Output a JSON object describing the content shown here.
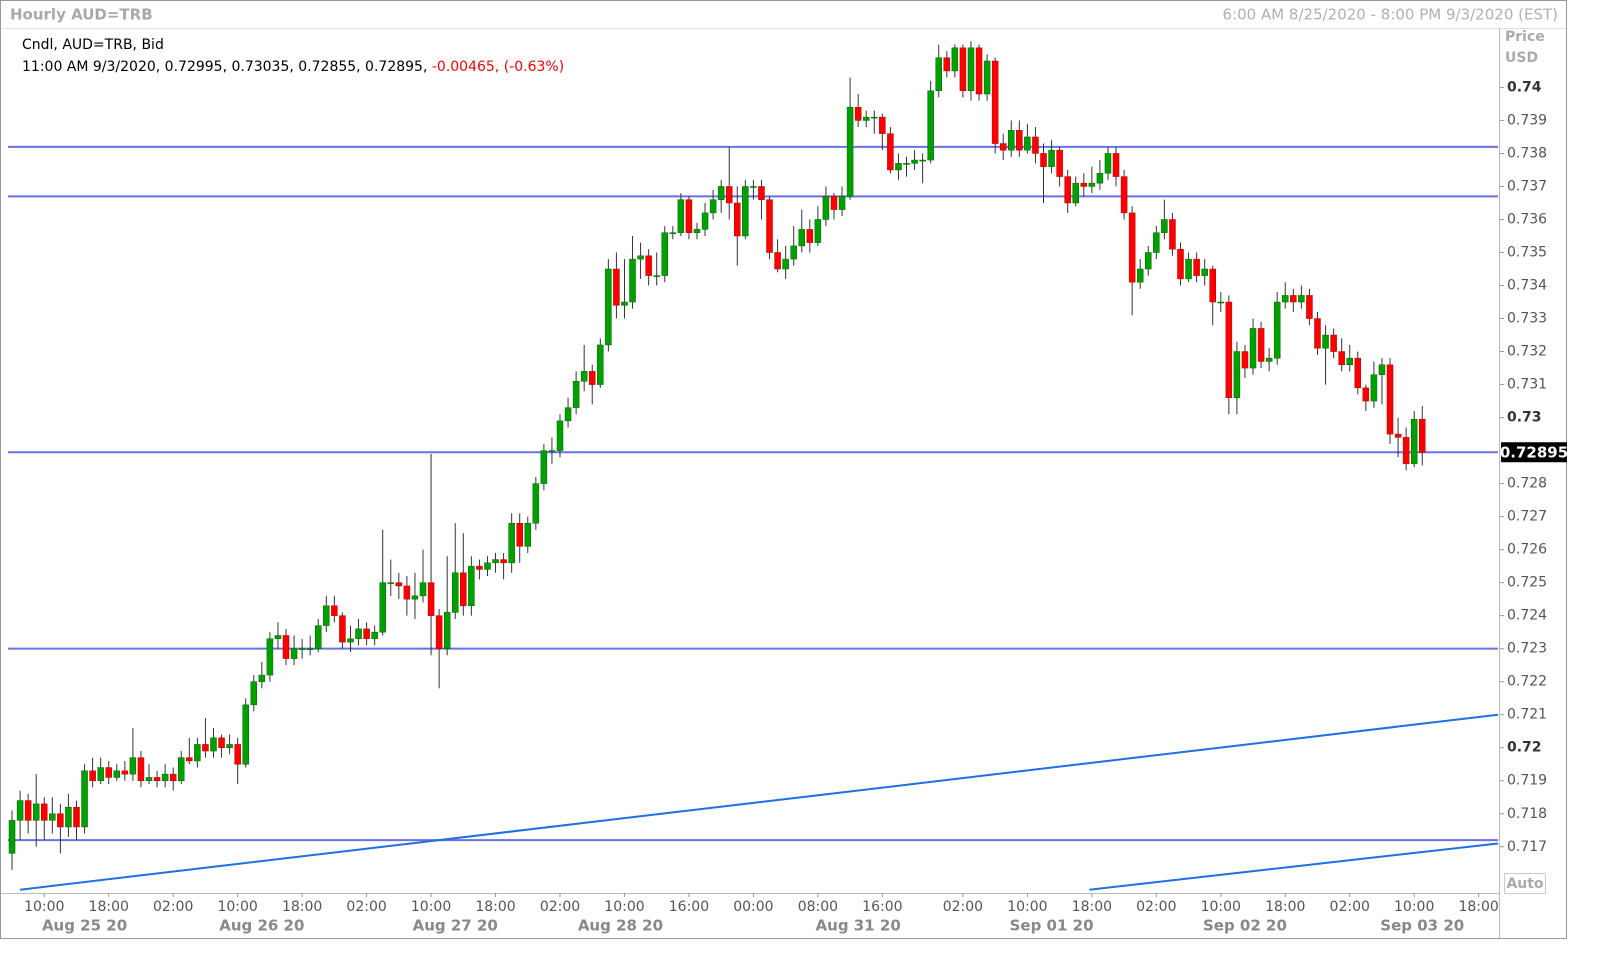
{
  "header": {
    "title": "Hourly AUD=TRB",
    "range": "6:00 AM 8/25/2020 - 8:00 PM 9/3/2020 (EST)"
  },
  "chart_data": {
    "type": "candlestick",
    "info_title": "Cndl, AUD=TRB, Bid",
    "info_values": "11:00 AM 9/3/2020, 0.72995, 0.73035, 0.72855, 0.72895,",
    "info_change": "-0.00465, (-0.63%)",
    "axis_label": "Price",
    "axis_unit": "USD",
    "auto_button": "Auto",
    "up_color": "#00a000",
    "down_color": "#ff0000",
    "open": [
      0.7168,
      0.7178,
      0.7184,
      0.7178,
      0.7183,
      0.7178,
      0.718,
      0.7176,
      0.7182,
      0.7176,
      0.7193,
      0.719,
      0.7194,
      0.7191,
      0.7193,
      0.7192,
      0.7197,
      0.719,
      0.7191,
      0.719,
      0.7192,
      0.719,
      0.7197,
      0.7196,
      0.7201,
      0.7199,
      0.7203,
      0.72,
      0.7201,
      0.7195,
      0.7213,
      0.722,
      0.7222,
      0.7233,
      0.7234,
      0.7227,
      0.723,
      0.723,
      0.723,
      0.7237,
      0.7243,
      0.724,
      0.7232,
      0.7233,
      0.7236,
      0.7233,
      0.7235,
      0.725,
      0.725,
      0.7249,
      0.7245,
      0.7246,
      0.725,
      0.724,
      0.723,
      0.7241,
      0.7253,
      0.7243,
      0.7255,
      0.7254,
      0.7256,
      0.7257,
      0.7256,
      0.7268,
      0.7261,
      0.7268,
      0.728,
      0.729,
      0.729,
      0.7299,
      0.7303,
      0.7311,
      0.7314,
      0.731,
      0.7322,
      0.7345,
      0.7334,
      0.7335,
      0.7348,
      0.7349,
      0.7343,
      0.7343,
      0.7356,
      0.7356,
      0.7366,
      0.7356,
      0.7357,
      0.7362,
      0.7366,
      0.737,
      0.7365,
      0.7355,
      0.737,
      0.737,
      0.7366,
      0.735,
      0.7345,
      0.7348,
      0.7352,
      0.7357,
      0.7353,
      0.736,
      0.7367,
      0.7363,
      0.7367,
      0.7394,
      0.739,
      0.7391,
      0.7391,
      0.7386,
      0.7375,
      0.7377,
      0.7377,
      0.7378,
      0.7378,
      0.7399,
      0.7409,
      0.7405,
      0.7412,
      0.7399,
      0.7412,
      0.7398,
      0.7408,
      0.7383,
      0.7381,
      0.7387,
      0.7381,
      0.7385,
      0.738,
      0.7376,
      0.7381,
      0.7373,
      0.7365,
      0.7371,
      0.737,
      0.7371,
      0.7374,
      0.738,
      0.7373,
      0.7362,
      0.7341,
      0.7345,
      0.735,
      0.7356,
      0.736,
      0.7351,
      0.7342,
      0.7348,
      0.7343,
      0.7345,
      0.7335,
      0.7335,
      0.7306,
      0.732,
      0.7315,
      0.7327,
      0.7317,
      0.7318,
      0.7335,
      0.7337,
      0.7335,
      0.7337,
      0.733,
      0.7321,
      0.7325,
      0.732,
      0.7316,
      0.7318,
      0.7309,
      0.7305,
      0.7313,
      0.7316,
      0.7295,
      0.7294,
      0.7286,
      0.72995
    ],
    "high": [
      0.7181,
      0.7187,
      0.7186,
      0.7192,
      0.7185,
      0.7185,
      0.7183,
      0.7186,
      0.7184,
      0.7195,
      0.7197,
      0.7197,
      0.7196,
      0.7195,
      0.7196,
      0.7206,
      0.7199,
      0.7195,
      0.7193,
      0.7195,
      0.7194,
      0.7199,
      0.7203,
      0.7203,
      0.7209,
      0.7206,
      0.7204,
      0.7204,
      0.7203,
      0.7215,
      0.7222,
      0.7226,
      0.7235,
      0.7238,
      0.7236,
      0.7234,
      0.7233,
      0.7234,
      0.7239,
      0.7246,
      0.7246,
      0.7241,
      0.7237,
      0.7239,
      0.7238,
      0.7237,
      0.7266,
      0.7257,
      0.7253,
      0.7252,
      0.7253,
      0.726,
      0.7289,
      0.7242,
      0.7258,
      0.7268,
      0.7265,
      0.7258,
      0.7257,
      0.7258,
      0.7259,
      0.7259,
      0.7271,
      0.7271,
      0.727,
      0.7282,
      0.7292,
      0.7294,
      0.7301,
      0.7306,
      0.7314,
      0.7322,
      0.7316,
      0.7324,
      0.7348,
      0.735,
      0.7348,
      0.7355,
      0.7353,
      0.7351,
      0.735,
      0.7358,
      0.7358,
      0.7368,
      0.7367,
      0.7359,
      0.7365,
      0.7369,
      0.7372,
      0.7382,
      0.737,
      0.7372,
      0.7372,
      0.7372,
      0.7367,
      0.7354,
      0.7352,
      0.7358,
      0.7363,
      0.736,
      0.7364,
      0.737,
      0.7368,
      0.737,
      0.7403,
      0.7398,
      0.7393,
      0.7393,
      0.7392,
      0.7388,
      0.738,
      0.7379,
      0.7381,
      0.738,
      0.7402,
      0.7413,
      0.7411,
      0.7413,
      0.7413,
      0.7414,
      0.7413,
      0.741,
      0.7409,
      0.7386,
      0.739,
      0.739,
      0.7389,
      0.7388,
      0.7383,
      0.7384,
      0.7382,
      0.7375,
      0.7373,
      0.7374,
      0.7376,
      0.7378,
      0.7382,
      0.7382,
      0.7375,
      0.7364,
      0.7348,
      0.7352,
      0.7358,
      0.7366,
      0.7362,
      0.7353,
      0.735,
      0.735,
      0.7348,
      0.7346,
      0.7338,
      0.7337,
      0.7323,
      0.7322,
      0.733,
      0.7329,
      0.7321,
      0.7338,
      0.7341,
      0.7339,
      0.734,
      0.7339,
      0.7332,
      0.7328,
      0.7327,
      0.7324,
      0.7322,
      0.732,
      0.731,
      0.7317,
      0.7318,
      0.7318,
      0.73,
      0.7297,
      0.7302,
      0.73035
    ],
    "low": [
      0.7163,
      0.7172,
      0.7174,
      0.717,
      0.7172,
      0.7174,
      0.7168,
      0.7173,
      0.7172,
      0.7174,
      0.7188,
      0.7189,
      0.7189,
      0.719,
      0.719,
      0.719,
      0.7188,
      0.7189,
      0.7188,
      0.7188,
      0.7187,
      0.7189,
      0.7195,
      0.7194,
      0.7197,
      0.7197,
      0.7197,
      0.7198,
      0.7189,
      0.7194,
      0.7211,
      0.7218,
      0.722,
      0.723,
      0.7225,
      0.7225,
      0.7227,
      0.7228,
      0.7229,
      0.7235,
      0.7238,
      0.723,
      0.7229,
      0.7231,
      0.7231,
      0.7231,
      0.7234,
      0.7246,
      0.7245,
      0.724,
      0.7239,
      0.7244,
      0.7228,
      0.7218,
      0.7228,
      0.7239,
      0.724,
      0.724,
      0.7251,
      0.7252,
      0.7253,
      0.7251,
      0.7253,
      0.7256,
      0.7259,
      0.7266,
      0.7278,
      0.7286,
      0.7288,
      0.7297,
      0.7301,
      0.7308,
      0.7304,
      0.7309,
      0.732,
      0.733,
      0.733,
      0.7333,
      0.7342,
      0.734,
      0.734,
      0.7341,
      0.7354,
      0.7355,
      0.7354,
      0.7354,
      0.7355,
      0.736,
      0.7362,
      0.736,
      0.7346,
      0.7354,
      0.7366,
      0.736,
      0.7348,
      0.7344,
      0.7342,
      0.7346,
      0.735,
      0.735,
      0.7352,
      0.7358,
      0.736,
      0.7361,
      0.7366,
      0.7388,
      0.7388,
      0.7386,
      0.7381,
      0.7374,
      0.7372,
      0.7373,
      0.7375,
      0.7371,
      0.7377,
      0.7397,
      0.7403,
      0.7403,
      0.7397,
      0.7396,
      0.7396,
      0.7396,
      0.738,
      0.7378,
      0.7379,
      0.7379,
      0.738,
      0.7377,
      0.7365,
      0.7374,
      0.737,
      0.7362,
      0.7364,
      0.7367,
      0.7368,
      0.7369,
      0.7372,
      0.737,
      0.736,
      0.7331,
      0.7339,
      0.7343,
      0.7348,
      0.7354,
      0.7349,
      0.734,
      0.7341,
      0.7341,
      0.734,
      0.7328,
      0.7332,
      0.7301,
      0.7301,
      0.7312,
      0.7313,
      0.7315,
      0.7314,
      0.7316,
      0.7333,
      0.7332,
      0.7333,
      0.7328,
      0.7319,
      0.731,
      0.7318,
      0.7314,
      0.7314,
      0.7307,
      0.7302,
      0.7303,
      0.7304,
      0.7292,
      0.7288,
      0.7284,
      0.7285,
      0.72855
    ],
    "close": [
      0.7178,
      0.7184,
      0.7178,
      0.7183,
      0.7178,
      0.718,
      0.7176,
      0.7182,
      0.7176,
      0.7193,
      0.719,
      0.7194,
      0.7191,
      0.7193,
      0.7192,
      0.7197,
      0.719,
      0.7191,
      0.719,
      0.7192,
      0.719,
      0.7197,
      0.7196,
      0.7201,
      0.7199,
      0.7203,
      0.72,
      0.7201,
      0.7195,
      0.7213,
      0.722,
      0.7222,
      0.7233,
      0.7234,
      0.7227,
      0.723,
      0.723,
      0.723,
      0.7237,
      0.7243,
      0.724,
      0.7232,
      0.7233,
      0.7236,
      0.7233,
      0.7235,
      0.725,
      0.725,
      0.7249,
      0.7245,
      0.7246,
      0.725,
      0.724,
      0.723,
      0.7241,
      0.7253,
      0.7243,
      0.7255,
      0.7254,
      0.7256,
      0.7257,
      0.7256,
      0.7268,
      0.7261,
      0.7268,
      0.728,
      0.729,
      0.729,
      0.7299,
      0.7303,
      0.7311,
      0.7314,
      0.731,
      0.7322,
      0.7345,
      0.7334,
      0.7335,
      0.7348,
      0.7349,
      0.7343,
      0.7343,
      0.7356,
      0.7356,
      0.7366,
      0.7356,
      0.7357,
      0.7362,
      0.7366,
      0.737,
      0.7365,
      0.7355,
      0.737,
      0.737,
      0.7366,
      0.735,
      0.7345,
      0.7348,
      0.7352,
      0.7357,
      0.7353,
      0.736,
      0.7367,
      0.7363,
      0.7367,
      0.7394,
      0.739,
      0.7391,
      0.7391,
      0.7386,
      0.7375,
      0.7377,
      0.7377,
      0.7378,
      0.7378,
      0.7399,
      0.7409,
      0.7405,
      0.7412,
      0.7399,
      0.7412,
      0.7398,
      0.7408,
      0.7383,
      0.7381,
      0.7387,
      0.7381,
      0.7385,
      0.738,
      0.7376,
      0.7381,
      0.7373,
      0.7365,
      0.7371,
      0.737,
      0.7371,
      0.7374,
      0.738,
      0.7373,
      0.7362,
      0.7341,
      0.7345,
      0.735,
      0.7356,
      0.736,
      0.7351,
      0.7342,
      0.7348,
      0.7343,
      0.7345,
      0.7335,
      0.7335,
      0.7306,
      0.732,
      0.7315,
      0.7327,
      0.7317,
      0.7318,
      0.7335,
      0.7337,
      0.7335,
      0.7337,
      0.733,
      0.7321,
      0.7325,
      0.732,
      0.7316,
      0.7318,
      0.7309,
      0.7305,
      0.7313,
      0.7316,
      0.7295,
      0.7294,
      0.7286,
      0.72995,
      0.72895
    ],
    "hlines": [
      0.7382,
      0.7367,
      0.72895,
      0.723,
      0.7172
    ],
    "hline_color": "#6a70e6",
    "trendlines": [
      {
        "x": [
          1,
          184.4
        ],
        "y": [
          0.7157,
          0.721
        ]
      },
      {
        "x": [
          133.7,
          184.4
        ],
        "y": [
          0.7157,
          0.7171
        ]
      }
    ],
    "trendline_color": "#1f6fe5",
    "xlim": [
      -0.5,
      184.4
    ],
    "xticks": [
      {
        "value": 4,
        "label": "10:00"
      },
      {
        "value": 12,
        "label": "18:00"
      },
      {
        "value": 20,
        "label": "02:00"
      },
      {
        "value": 28,
        "label": "10:00"
      },
      {
        "value": 36,
        "label": "18:00"
      },
      {
        "value": 44,
        "label": "02:00"
      },
      {
        "value": 52,
        "label": "10:00"
      },
      {
        "value": 60,
        "label": "18:00"
      },
      {
        "value": 68,
        "label": "02:00"
      },
      {
        "value": 76,
        "label": "10:00"
      },
      {
        "value": 84,
        "label": "16:00"
      },
      {
        "value": 92,
        "label": "00:00"
      },
      {
        "value": 100,
        "label": "08:00"
      },
      {
        "value": 108,
        "label": "16:00"
      },
      {
        "value": 118,
        "label": "02:00"
      },
      {
        "value": 126,
        "label": "10:00"
      },
      {
        "value": 134,
        "label": "18:00"
      },
      {
        "value": 142,
        "label": "02:00"
      },
      {
        "value": 150,
        "label": "10:00"
      },
      {
        "value": 158,
        "label": "18:00"
      },
      {
        "value": 166,
        "label": "02:00"
      },
      {
        "value": 174,
        "label": "10:00"
      },
      {
        "value": 182,
        "label": "18:00"
      }
    ],
    "date_labels": [
      {
        "value": 9,
        "label": "Aug 25 20"
      },
      {
        "value": 31,
        "label": "Aug 26 20"
      },
      {
        "value": 55,
        "label": "Aug 27 20"
      },
      {
        "value": 75.5,
        "label": "Aug 28 20"
      },
      {
        "value": 105,
        "label": "Aug 31 20"
      },
      {
        "value": 129,
        "label": "Sep 01 20"
      },
      {
        "value": 153,
        "label": "Sep 02 20"
      },
      {
        "value": 175,
        "label": "Sep 03 20"
      }
    ],
    "ylim": [
      0.7156,
      0.7418
    ],
    "yticks": [
      0.717,
      0.718,
      0.719,
      0.72,
      0.721,
      0.722,
      0.723,
      0.724,
      0.725,
      0.726,
      0.727,
      0.728,
      0.729,
      0.73,
      0.731,
      0.732,
      0.733,
      0.734,
      0.735,
      0.736,
      0.737,
      0.738,
      0.739,
      0.74
    ]
  }
}
